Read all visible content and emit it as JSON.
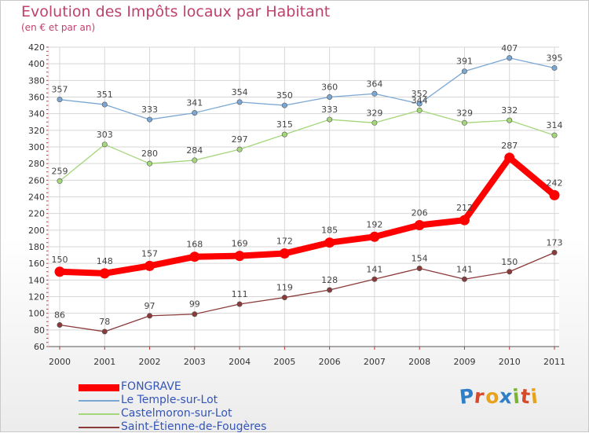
{
  "title": "Evolution des Impôts locaux par Habitant",
  "subtitle": "(en € et par an)",
  "logo": {
    "letters": [
      "P",
      "r",
      "o",
      "x",
      "i",
      "t",
      "i"
    ],
    "colors": [
      "#2e7fc8",
      "#d44a2a",
      "#e8a21c",
      "#2e7fc8",
      "#7ab336",
      "#d44a2a",
      "#e8a21c"
    ]
  },
  "chart_data": {
    "type": "line",
    "title": "Evolution des Impôts locaux par Habitant",
    "subtitle": "(en € et par an)",
    "xlabel": "",
    "ylabel": "",
    "x": [
      "2000",
      "2001",
      "2002",
      "2003",
      "2004",
      "2005",
      "2006",
      "2007",
      "2008",
      "2009",
      "2010",
      "2011"
    ],
    "ylim": [
      60,
      420
    ],
    "yticks": [
      60,
      80,
      100,
      120,
      140,
      160,
      180,
      200,
      220,
      240,
      260,
      280,
      300,
      320,
      340,
      360,
      380,
      400,
      420
    ],
    "grid": true,
    "legend_position": "bottom-left",
    "series": [
      {
        "name": "FONGRAVE",
        "color": "#ff0000",
        "values": [
          150,
          148,
          157,
          168,
          169,
          172,
          185,
          192,
          206,
          212,
          287,
          242
        ]
      },
      {
        "name": "Le Temple-sur-Lot",
        "color": "#7ba7d4",
        "values": [
          357,
          351,
          333,
          341,
          354,
          350,
          360,
          364,
          352,
          391,
          407,
          395
        ]
      },
      {
        "name": "Castelmoron-sur-Lot",
        "color": "#a4d67a",
        "values": [
          259,
          303,
          280,
          284,
          297,
          315,
          333,
          329,
          344,
          329,
          332,
          314
        ]
      },
      {
        "name": "Saint-Étienne-de-Fougères",
        "color": "#8a3a3a",
        "values": [
          86,
          78,
          97,
          99,
          111,
          119,
          128,
          141,
          154,
          141,
          150,
          173
        ]
      }
    ],
    "data_labels": [
      [
        "150",
        "148",
        "157",
        "168",
        "169",
        "172",
        "185",
        "192",
        "206",
        "212",
        "287",
        "242"
      ],
      [
        "357",
        "351",
        "333",
        "341",
        "354",
        "350",
        "360",
        "364",
        "352",
        "391",
        "407",
        "395"
      ],
      [
        "259",
        "303",
        "280",
        "284",
        "297",
        "315",
        "333",
        "329",
        "344",
        "329",
        "332",
        "314"
      ],
      [
        "86",
        "78",
        "97",
        "99",
        "111",
        "119",
        "128",
        "141",
        "154",
        "141",
        "150",
        "173"
      ]
    ]
  }
}
